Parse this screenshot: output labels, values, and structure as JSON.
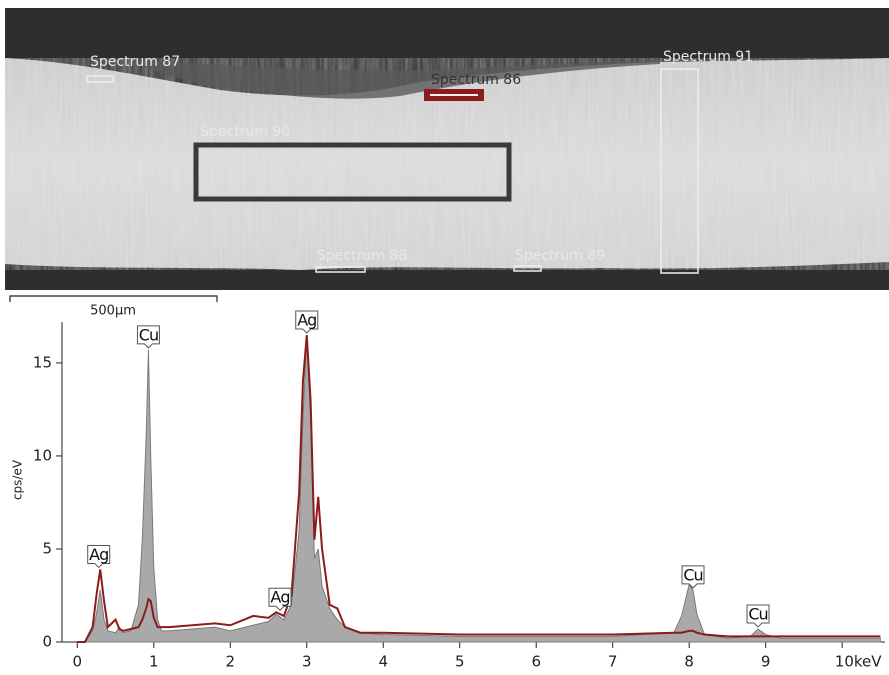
{
  "micrograph": {
    "labels": [
      "Spectrum 87",
      "Spectrum 86",
      "Spectrum 91",
      "Spectrum 90",
      "Spectrum 88",
      "Spectrum 89"
    ],
    "scale_bar": "500µm"
  },
  "chart_data": {
    "type": "area-line",
    "ylabel": "cps/eV",
    "x": [
      0,
      0.1,
      0.2,
      0.25,
      0.3,
      0.35,
      0.4,
      0.5,
      0.55,
      0.6,
      0.7,
      0.8,
      0.85,
      0.9,
      0.93,
      0.96,
      1.0,
      1.05,
      1.1,
      1.2,
      1.5,
      1.8,
      2.0,
      2.3,
      2.5,
      2.6,
      2.7,
      2.8,
      2.9,
      2.95,
      3.0,
      3.05,
      3.1,
      3.15,
      3.2,
      3.3,
      3.4,
      3.5,
      3.7,
      4,
      5,
      6,
      7,
      7.8,
      7.9,
      8.0,
      8.05,
      8.1,
      8.2,
      8.5,
      8.8,
      8.9,
      9.0,
      9.2,
      10,
      10.5
    ],
    "series": [
      {
        "color": "#a9a9a9",
        "values": [
          0,
          0,
          0.6,
          1.5,
          2.8,
          1.2,
          0.6,
          0.5,
          0.8,
          0.5,
          0.6,
          2,
          5.5,
          11,
          15.7,
          10,
          4,
          1.2,
          0.6,
          0.6,
          0.7,
          0.8,
          0.6,
          0.9,
          1.1,
          1.5,
          1.2,
          2,
          6,
          12,
          16.4,
          12,
          4.5,
          5,
          3,
          1.8,
          1.2,
          0.8,
          0.5,
          0.4,
          0.3,
          0.3,
          0.3,
          0.5,
          1.4,
          3.1,
          2.8,
          1.5,
          0.4,
          0.2,
          0.3,
          0.7,
          0.4,
          0.2,
          0.2,
          0.2
        ]
      },
      {
        "color": "#8b1c1c",
        "values": [
          0,
          0,
          0.8,
          2.5,
          3.9,
          2.2,
          0.8,
          1.2,
          0.7,
          0.6,
          0.7,
          0.8,
          1.2,
          1.8,
          2.3,
          2.2,
          1.3,
          0.8,
          0.8,
          0.8,
          0.9,
          1.0,
          0.9,
          1.4,
          1.3,
          1.6,
          1.4,
          2.5,
          8,
          14,
          16.5,
          13,
          5.5,
          7.8,
          5,
          2,
          1.8,
          0.8,
          0.5,
          0.5,
          0.4,
          0.4,
          0.4,
          0.5,
          0.5,
          0.6,
          0.6,
          0.5,
          0.4,
          0.3,
          0.3,
          0.3,
          0.3,
          0.3,
          0.3,
          0.3
        ]
      }
    ],
    "annotations": [
      {
        "text": "Ag",
        "x": 0.28
      },
      {
        "text": "Cu",
        "x": 0.93
      },
      {
        "text": "Ag",
        "x": 2.65
      },
      {
        "text": "Ag",
        "x": 3.0
      },
      {
        "text": "Cu",
        "x": 8.05
      },
      {
        "text": "Cu",
        "x": 8.9
      }
    ],
    "xlim": [
      -0.2,
      10.56
    ],
    "xticks": [
      0,
      1,
      2,
      3,
      4,
      5,
      6,
      7,
      8,
      9,
      {
        "value": 10,
        "label": "10keV"
      }
    ],
    "ylim": [
      0,
      17.2
    ],
    "yticks": [
      0,
      5,
      10,
      15
    ]
  }
}
